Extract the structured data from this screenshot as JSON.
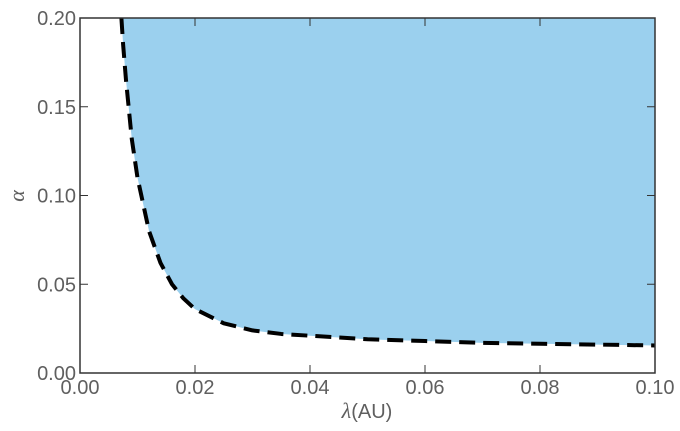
{
  "chart_data": {
    "type": "area",
    "xlabel_symbol": "λ",
    "xlabel_unit": "(AU)",
    "ylabel": "α",
    "xlim": [
      0.0,
      0.1
    ],
    "ylim": [
      0.0,
      0.2
    ],
    "x_ticks": [
      "0.00",
      "0.02",
      "0.04",
      "0.06",
      "0.08",
      "0.10"
    ],
    "y_ticks": [
      "0.00",
      "0.05",
      "0.10",
      "0.15",
      "0.20"
    ],
    "grid": false,
    "fill_color": "#9bd0ee",
    "boundary_color": "#000000",
    "boundary_style": "dashed",
    "series": [
      {
        "x": [
          0.0072,
          0.0075,
          0.008,
          0.009,
          0.01,
          0.012,
          0.014,
          0.016,
          0.018,
          0.02,
          0.025,
          0.03,
          0.035,
          0.04,
          0.05,
          0.06,
          0.07,
          0.08,
          0.09,
          0.1
        ],
        "values": [
          0.2,
          0.185,
          0.165,
          0.132,
          0.11,
          0.08,
          0.062,
          0.05,
          0.042,
          0.036,
          0.028,
          0.024,
          0.022,
          0.021,
          0.019,
          0.018,
          0.017,
          0.0165,
          0.016,
          0.0155
        ]
      }
    ]
  }
}
